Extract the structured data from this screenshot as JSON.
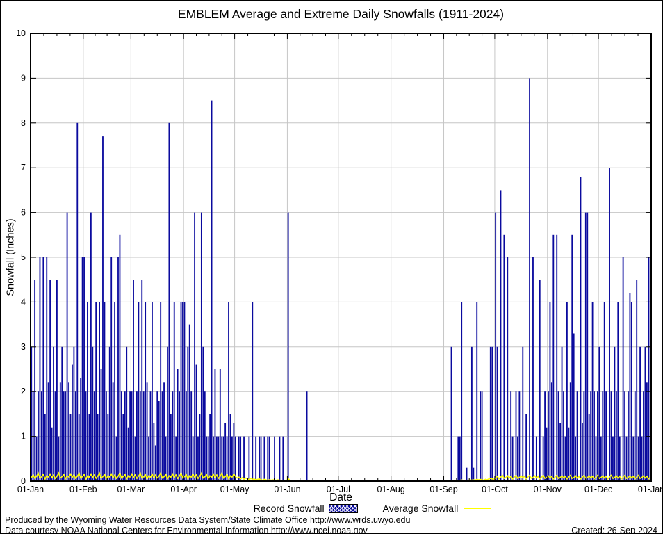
{
  "title": "EMBLEM Average and Extreme Daily Snowfalls (1911-2024)",
  "legend": {
    "record_label": "Record Snowfall",
    "average_label": "Average Snowfall"
  },
  "footer": {
    "line1": "Produced by the Wyoming Water Resources Data System/State Climate Office http://www.wrds.uwyo.edu",
    "line2": "Data courtesy NOAA National Centers for Environmental Information http://www.ncei.noaa.gov",
    "created": "Created: 26-Sep-2024"
  },
  "colors": {
    "bar": "#0a0a9e",
    "average_line": "#ffff00",
    "grid": "#c6c6c6",
    "axis": "#000000",
    "background": "#ffffff"
  },
  "chart_data": {
    "type": "bar",
    "title": "EMBLEM Average and Extreme Daily Snowfalls (1911-2024)",
    "xlabel": "Date",
    "ylabel": "Snowfall (Inches)",
    "ylim": [
      0,
      10
    ],
    "grid": true,
    "legend_position": "below",
    "y_ticks": [
      0,
      1,
      2,
      3,
      4,
      5,
      6,
      7,
      8,
      9,
      10
    ],
    "x_tick_labels": [
      "01-Jan",
      "01-Feb",
      "01-Mar",
      "01-Apr",
      "01-May",
      "01-Jun",
      "01-Jul",
      "01-Aug",
      "01-Sep",
      "01-Oct",
      "01-Nov",
      "01-Dec",
      "01-Jan"
    ],
    "month_day_offsets": [
      0,
      31,
      59,
      90,
      120,
      151,
      181,
      212,
      243,
      273,
      304,
      334,
      365
    ],
    "series": [
      {
        "name": "Record Snowfall",
        "type": "bar",
        "color": "#0a0a9e",
        "values": [
          3,
          2,
          4.5,
          1,
          2,
          5,
          2,
          5,
          1.5,
          5,
          2.2,
          4.5,
          1.2,
          3,
          2,
          4.5,
          1,
          2.2,
          3,
          2,
          2,
          6,
          2.2,
          1.5,
          2.6,
          3,
          2,
          8,
          1.5,
          2.3,
          5,
          5,
          2,
          4,
          1.5,
          6,
          3,
          2,
          4,
          1.5,
          4,
          2.5,
          7.7,
          4,
          2,
          1.5,
          3,
          5,
          2.2,
          4,
          1,
          5,
          5.5,
          2,
          1.5,
          2,
          3,
          1.2,
          2,
          2,
          4.5,
          1,
          2,
          4,
          2,
          4.5,
          2,
          4,
          2.2,
          1,
          2,
          4,
          1.3,
          0.8,
          2,
          1.8,
          4,
          2,
          2.2,
          1,
          3,
          8,
          1.5,
          2,
          4,
          1,
          2.5,
          2,
          4,
          4,
          4,
          2,
          3,
          3.5,
          2,
          1,
          6,
          2.6,
          1,
          1.5,
          6,
          3,
          2,
          1,
          1,
          1.5,
          8.5,
          1,
          2.5,
          1,
          1,
          2.5,
          1,
          1,
          1.3,
          1,
          4,
          1.5,
          1,
          1.3,
          1,
          0,
          1,
          1,
          0,
          1,
          0,
          0,
          1,
          0,
          4,
          0,
          1,
          0,
          1,
          1,
          0,
          1,
          0,
          1,
          1,
          0,
          0,
          1,
          0,
          0,
          1,
          0,
          1,
          0,
          0,
          6,
          0,
          0,
          0,
          0,
          0,
          0,
          0,
          0,
          0,
          0,
          2,
          0,
          0,
          0,
          0,
          0,
          0,
          0,
          0,
          0,
          0,
          0,
          0,
          0,
          0,
          0,
          0,
          0,
          0,
          0,
          0,
          0,
          0,
          0,
          0,
          0,
          0,
          0,
          0,
          0,
          0,
          0,
          0,
          0,
          0,
          0,
          0,
          0,
          0,
          0,
          0,
          0,
          0,
          0,
          0,
          0,
          0,
          0,
          0,
          0,
          0,
          0,
          0,
          0,
          0,
          0,
          0,
          0,
          0,
          0,
          0,
          0,
          0,
          0,
          0,
          0,
          0,
          0,
          0,
          0,
          0,
          0,
          0,
          0,
          0,
          0,
          0,
          0,
          0,
          0,
          0,
          0,
          0,
          0,
          0,
          3,
          0,
          0,
          0,
          1,
          1,
          4,
          0,
          0,
          0.3,
          0,
          0,
          3,
          0.3,
          0,
          4,
          0,
          2,
          2,
          0,
          0,
          0,
          0,
          3,
          3,
          0,
          6,
          3,
          0,
          6.5,
          0,
          5.5,
          0,
          5,
          0,
          2,
          1,
          0,
          2,
          1,
          2,
          0,
          3,
          0,
          1.5,
          0,
          9,
          0,
          5,
          0,
          1,
          0,
          4.5,
          0,
          1,
          2,
          1.2,
          2,
          4,
          2.2,
          5.5,
          0,
          5.5,
          2,
          1.3,
          3,
          2,
          1,
          4,
          1.2,
          2.2,
          5.5,
          3.3,
          1,
          2,
          0,
          6.8,
          1.3,
          2,
          6,
          6,
          1.5,
          2,
          4,
          2,
          1,
          2,
          3,
          1,
          2,
          4,
          2,
          0,
          7,
          2,
          1,
          3,
          2,
          4,
          1,
          0,
          5,
          2,
          1,
          2,
          4.2,
          4,
          1,
          2,
          4.5,
          1,
          3,
          1,
          2,
          3,
          2.2,
          5,
          5
        ]
      },
      {
        "name": "Average Snowfall",
        "type": "line",
        "color": "#ffff00",
        "values": [
          0.08,
          0.14,
          0.06,
          0.11,
          0.18,
          0.07,
          0.1,
          0.15,
          0.05,
          0.12,
          0.09,
          0.16,
          0.08,
          0.14,
          0.06,
          0.11,
          0.18,
          0.07,
          0.1,
          0.15,
          0.05,
          0.12,
          0.09,
          0.16,
          0.08,
          0.14,
          0.06,
          0.11,
          0.18,
          0.07,
          0.1,
          0.15,
          0.05,
          0.12,
          0.09,
          0.16,
          0.08,
          0.14,
          0.06,
          0.11,
          0.18,
          0.07,
          0.1,
          0.15,
          0.05,
          0.12,
          0.09,
          0.16,
          0.08,
          0.14,
          0.06,
          0.11,
          0.18,
          0.07,
          0.1,
          0.15,
          0.05,
          0.12,
          0.09,
          0.16,
          0.08,
          0.14,
          0.06,
          0.11,
          0.18,
          0.07,
          0.1,
          0.15,
          0.05,
          0.12,
          0.09,
          0.16,
          0.08,
          0.14,
          0.06,
          0.11,
          0.18,
          0.07,
          0.1,
          0.15,
          0.05,
          0.12,
          0.09,
          0.16,
          0.08,
          0.14,
          0.06,
          0.11,
          0.18,
          0.07,
          0.1,
          0.15,
          0.05,
          0.12,
          0.09,
          0.16,
          0.08,
          0.14,
          0.06,
          0.11,
          0.18,
          0.07,
          0.1,
          0.15,
          0.05,
          0.12,
          0.09,
          0.16,
          0.08,
          0.14,
          0.06,
          0.11,
          0.18,
          0.07,
          0.1,
          0.15,
          0.05,
          0.12,
          0.09,
          0.16,
          0.1,
          0.07,
          0.09,
          0.05,
          0.08,
          0.04,
          0.07,
          0.05,
          0.03,
          0.06,
          0.04,
          0.05,
          0.03,
          0.04,
          0.05,
          0.03,
          0.02,
          0.04,
          0.03,
          0.02,
          0.03,
          0.02,
          0.03,
          0.02,
          0.02,
          0.03,
          0.02,
          0.02,
          0.01,
          0.02,
          0.01,
          0.06,
          0.02,
          0.01,
          0.01,
          0,
          0.01,
          0,
          0,
          0.01,
          0,
          0,
          0.01,
          0,
          0,
          0,
          0.01,
          0,
          0,
          0,
          0,
          0,
          0.01,
          0,
          0,
          0,
          0,
          0,
          0,
          0,
          0,
          0,
          0,
          0,
          0,
          0,
          0,
          0,
          0,
          0,
          0,
          0,
          0,
          0,
          0,
          0,
          0,
          0,
          0,
          0,
          0,
          0,
          0,
          0,
          0,
          0,
          0,
          0,
          0,
          0,
          0,
          0,
          0,
          0,
          0,
          0,
          0,
          0,
          0,
          0,
          0,
          0,
          0,
          0,
          0,
          0,
          0,
          0,
          0,
          0,
          0,
          0,
          0,
          0,
          0,
          0,
          0,
          0,
          0,
          0,
          0,
          0,
          0,
          0,
          0,
          0,
          0,
          0.02,
          0.01,
          0,
          0.01,
          0.02,
          0.01,
          0.03,
          0.01,
          0.02,
          0.01,
          0.02,
          0.03,
          0.02,
          0.03,
          0.02,
          0.04,
          0.03,
          0.04,
          0.03,
          0.02,
          0.04,
          0.03,
          0.05,
          0.06,
          0.05,
          0.04,
          0.07,
          0.11,
          0.05,
          0.09,
          0.13,
          0.06,
          0.08,
          0.12,
          0.07,
          0.11,
          0.05,
          0.09,
          0.13,
          0.06,
          0.08,
          0.12,
          0.07,
          0.11,
          0.05,
          0.09,
          0.13,
          0.06,
          0.08,
          0.12,
          0.07,
          0.11,
          0.05,
          0.09,
          0.13,
          0.06,
          0.08,
          0.12,
          0.07,
          0.11,
          0.05,
          0.09,
          0.13,
          0.06,
          0.08,
          0.12,
          0.07,
          0.11,
          0.05,
          0.09,
          0.13,
          0.06,
          0.08,
          0.12,
          0.07,
          0.11,
          0.05,
          0.09,
          0.13,
          0.06,
          0.08,
          0.12,
          0.07,
          0.11,
          0.05,
          0.09,
          0.13,
          0.06,
          0.08,
          0.12,
          0.07,
          0.11,
          0.05,
          0.09,
          0.13,
          0.06,
          0.08,
          0.12,
          0.07,
          0.11,
          0.05,
          0.09,
          0.13,
          0.06,
          0.08,
          0.12,
          0.07,
          0.11,
          0.05,
          0.09,
          0.13,
          0.06,
          0.08,
          0.12,
          0.07,
          0.11,
          0.05,
          0.09
        ]
      }
    ]
  }
}
